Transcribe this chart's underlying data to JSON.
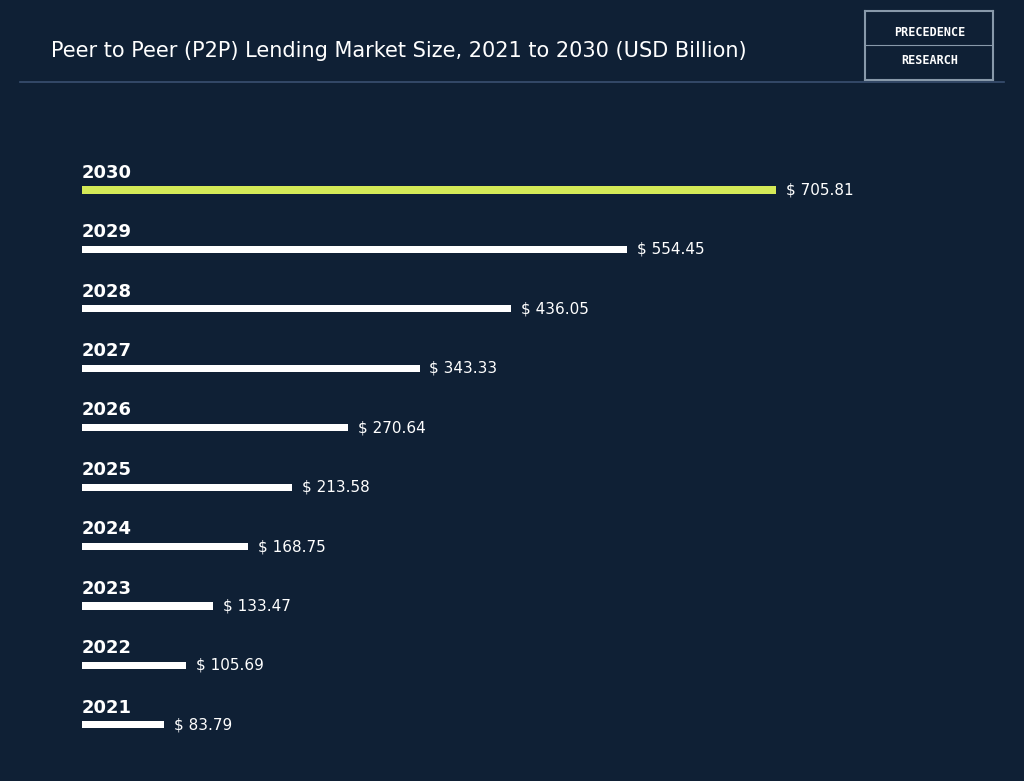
{
  "title": "Peer to Peer (P2P) Lending Market Size, 2021 to 2030 (USD Billion)",
  "background_color": "#0f2035",
  "title_color": "#ffffff",
  "years": [
    "2030",
    "2029",
    "2028",
    "2027",
    "2026",
    "2025",
    "2024",
    "2023",
    "2022",
    "2021"
  ],
  "values": [
    705.81,
    554.45,
    436.05,
    343.33,
    270.64,
    213.58,
    168.75,
    133.47,
    105.69,
    83.79
  ],
  "bar_colors": [
    "#d4e957",
    "#ffffff",
    "#ffffff",
    "#ffffff",
    "#ffffff",
    "#ffffff",
    "#ffffff",
    "#ffffff",
    "#ffffff",
    "#ffffff"
  ],
  "label_color": "#ffffff",
  "year_label_color": "#ffffff",
  "bar_height": 0.12,
  "logo_text_line1": "PRECEDENCE",
  "logo_text_line2": "RESEARCH",
  "logo_bg": "#0f2035",
  "logo_border": "#8899aa",
  "separator_color": "#3a5070",
  "title_fontsize": 15,
  "year_fontsize": 13,
  "value_fontsize": 11
}
